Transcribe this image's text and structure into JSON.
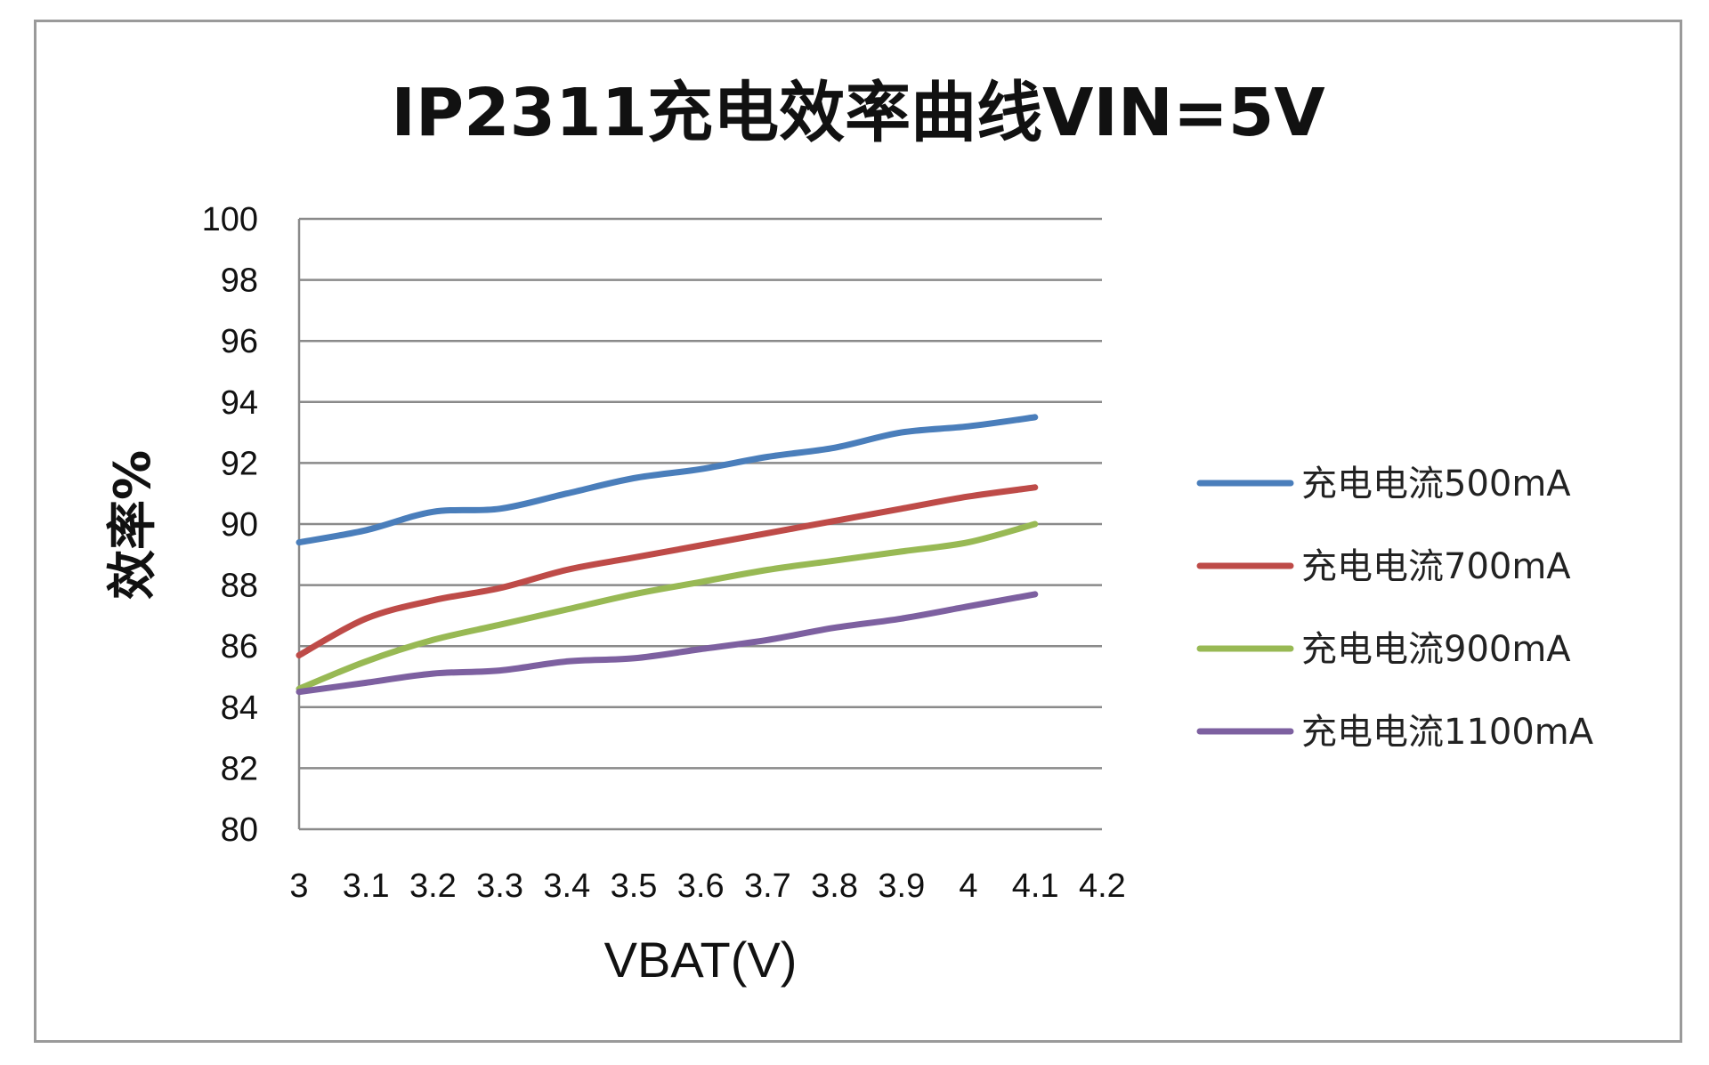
{
  "chart_data": {
    "type": "line",
    "title": "IP2311充电效率曲线VIN=5V",
    "xlabel": "VBAT(V)",
    "ylabel": "效率%",
    "xlim": [
      3,
      4.2
    ],
    "ylim": [
      80,
      100
    ],
    "x_ticks": [
      "3",
      "3.1",
      "3.2",
      "3.3",
      "3.4",
      "3.5",
      "3.6",
      "3.7",
      "3.8",
      "3.9",
      "4",
      "4.1",
      "4.2"
    ],
    "y_ticks": [
      "100",
      "98",
      "96",
      "94",
      "92",
      "90",
      "88",
      "86",
      "84",
      "82",
      "80"
    ],
    "grid": true,
    "legend_position": "right",
    "x": [
      3,
      3.1,
      3.2,
      3.3,
      3.4,
      3.5,
      3.6,
      3.7,
      3.8,
      3.9,
      4,
      4.1
    ],
    "series": [
      {
        "name": "充电电流500mA",
        "color": "#4a7ebb",
        "values": [
          89.4,
          89.8,
          90.4,
          90.5,
          91.0,
          91.5,
          91.8,
          92.2,
          92.5,
          93.0,
          93.2,
          93.5
        ]
      },
      {
        "name": "充电电流700mA",
        "color": "#be4b48",
        "values": [
          85.7,
          86.9,
          87.5,
          87.9,
          88.5,
          88.9,
          89.3,
          89.7,
          90.1,
          90.5,
          90.9,
          91.2
        ]
      },
      {
        "name": "充电电流900mA",
        "color": "#98b954",
        "values": [
          84.6,
          85.5,
          86.2,
          86.7,
          87.2,
          87.7,
          88.1,
          88.5,
          88.8,
          89.1,
          89.4,
          90.0
        ]
      },
      {
        "name": "充电电流1100mA",
        "color": "#7d60a0",
        "values": [
          84.5,
          84.8,
          85.1,
          85.2,
          85.5,
          85.6,
          85.9,
          86.2,
          86.6,
          86.9,
          87.3,
          87.7
        ]
      }
    ]
  }
}
